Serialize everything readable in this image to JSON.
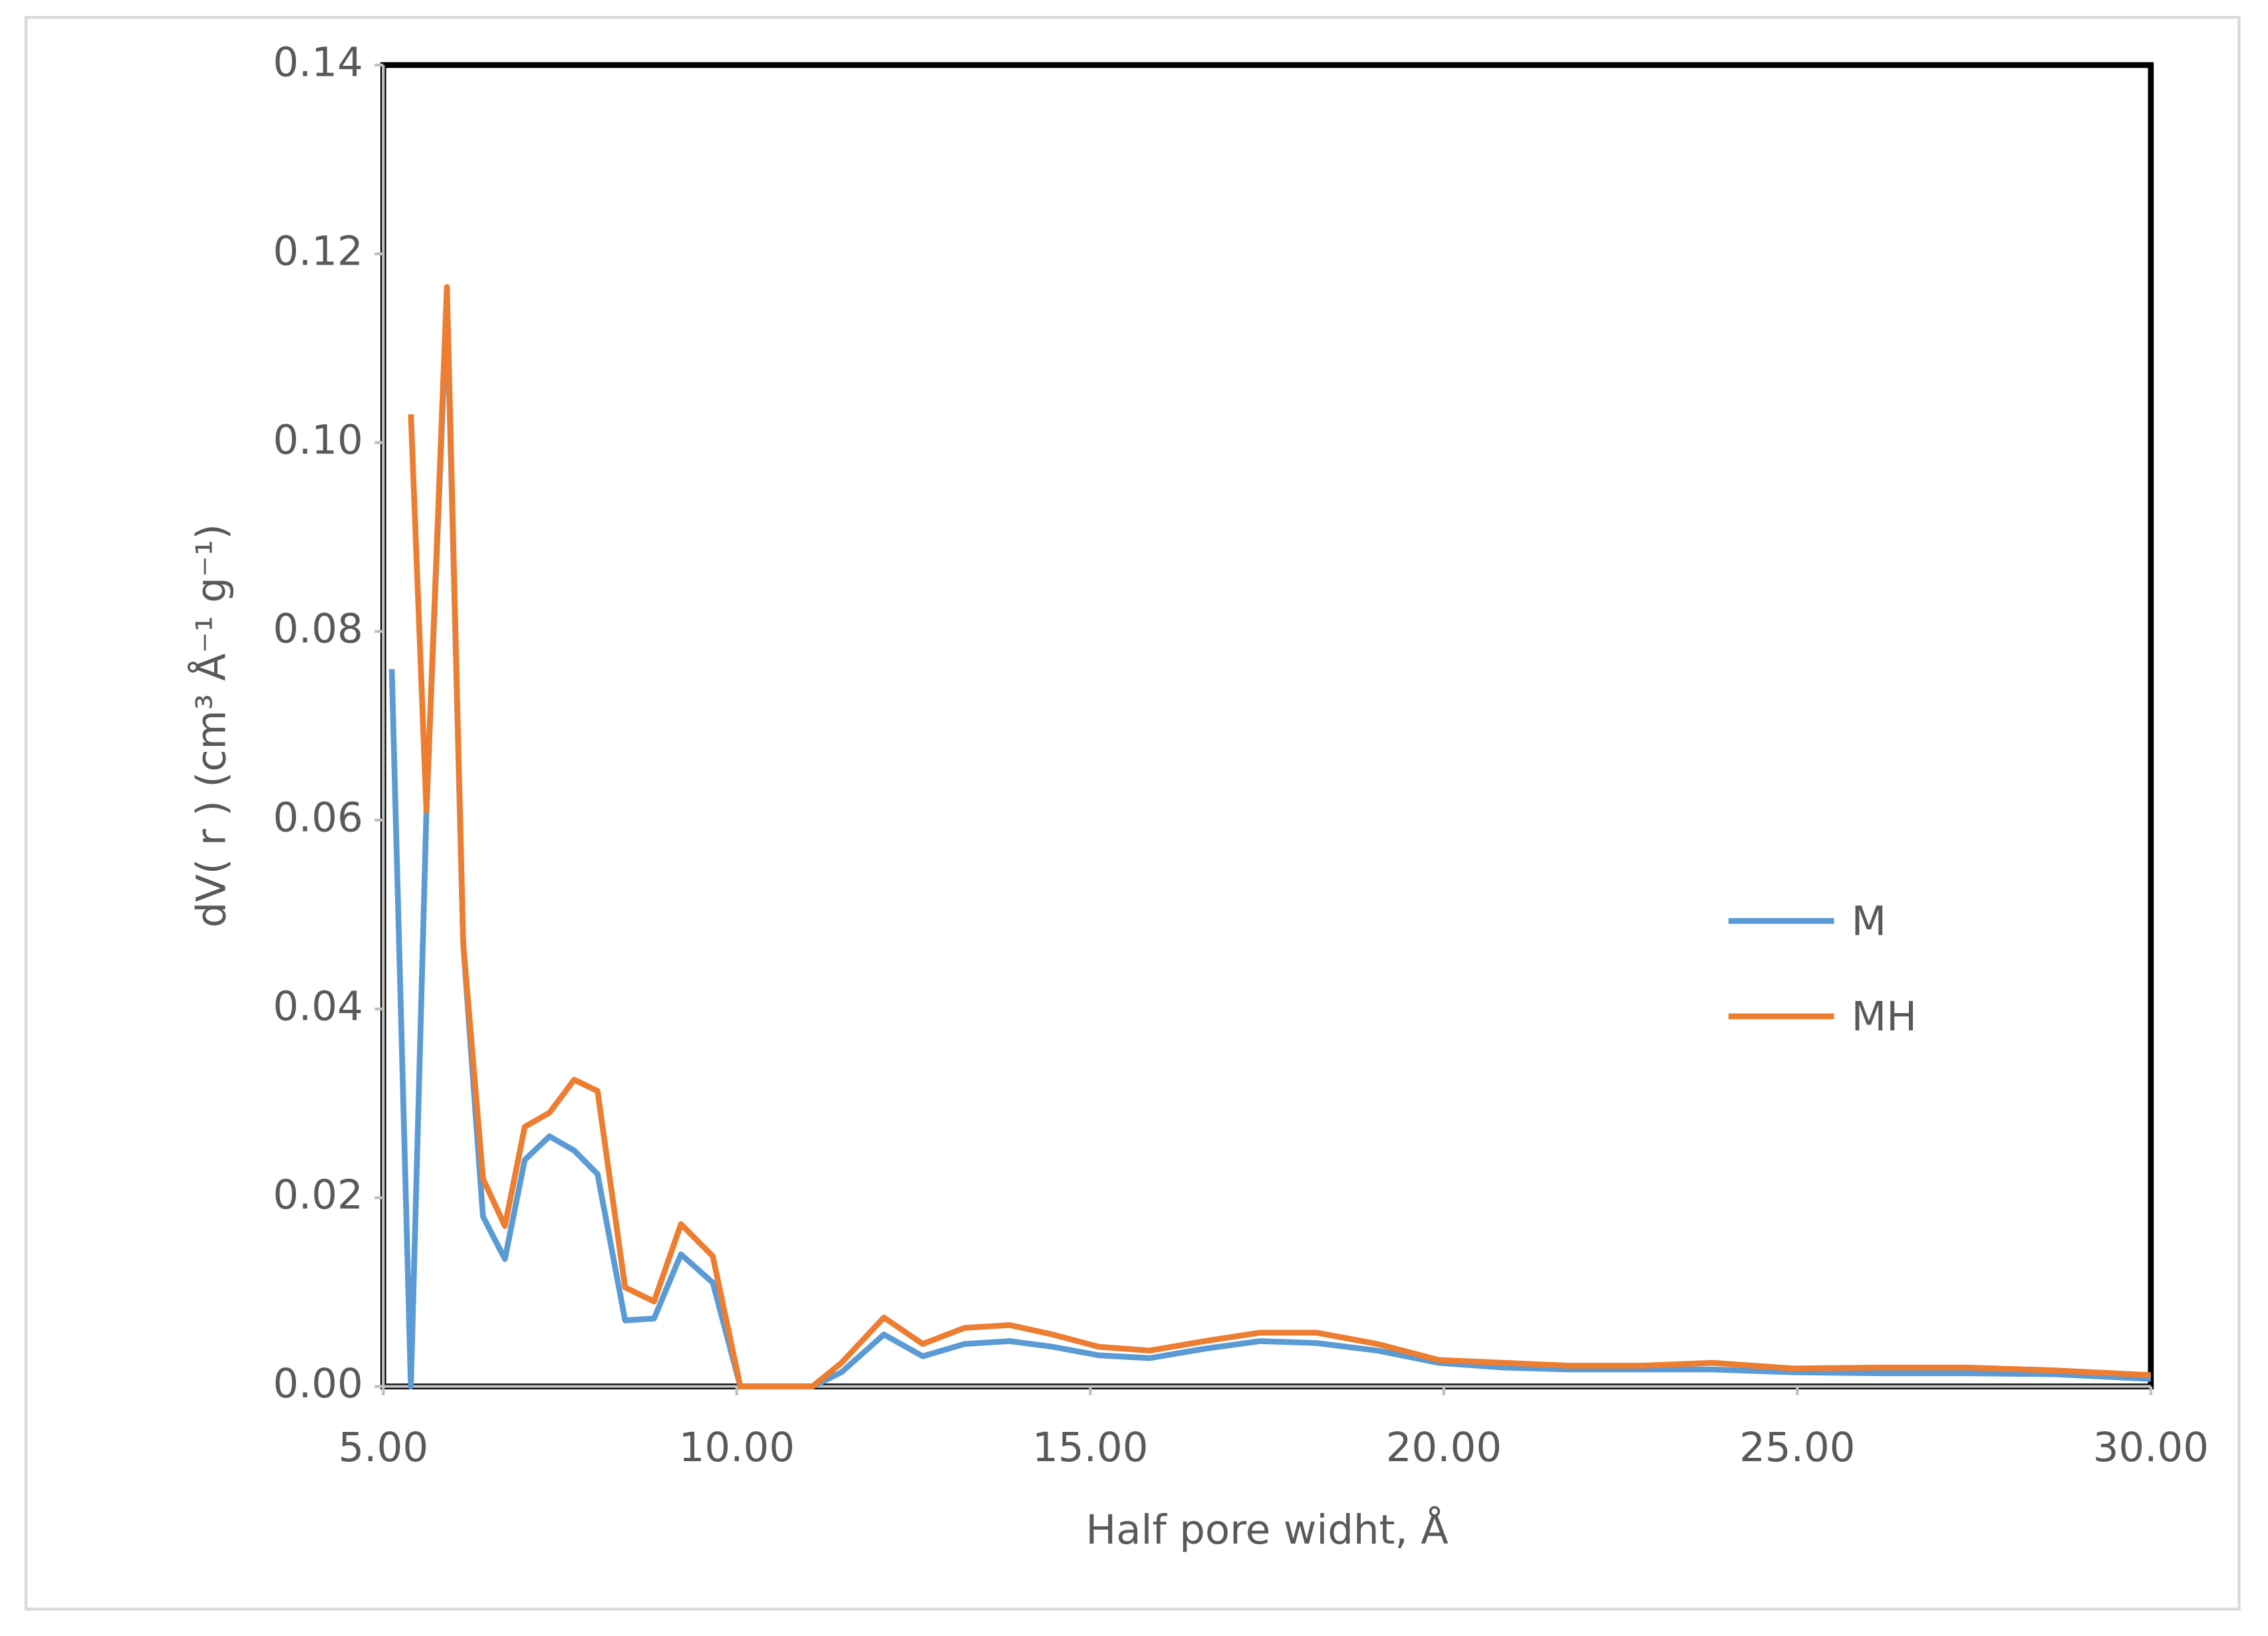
{
  "chart_data": {
    "type": "line",
    "y_label": "dV( r ) (cm³ Å⁻¹ g⁻¹)",
    "x_label": "Half pore widht, Å",
    "x": [
      5.12,
      5.39,
      5.61,
      5.9,
      6.13,
      6.41,
      6.72,
      7.0,
      7.35,
      7.7,
      8.03,
      8.42,
      8.83,
      9.21,
      9.66,
      10.05,
      10.56,
      11.07,
      11.48,
      12.08,
      12.63,
      13.22,
      13.86,
      14.47,
      15.12,
      15.84,
      16.62,
      17.4,
      18.2,
      19.06,
      19.93,
      20.85,
      21.77,
      22.8,
      23.8,
      24.95,
      26.17,
      27.4,
      28.63,
      30.0
    ],
    "series": [
      {
        "name": "M",
        "color": "#5b9bd5",
        "values": [
          0.076,
          0,
          0.061,
          0.115,
          0.047,
          0.018,
          0.0135,
          0.024,
          0.0265,
          0.025,
          0.0225,
          0.007,
          0.0072,
          0.014,
          0.011,
          0,
          0,
          0,
          0.0015,
          0.0055,
          0.0032,
          0.0045,
          0.0048,
          0.0042,
          0.0033,
          0.003,
          0.004,
          0.0048,
          0.0046,
          0.0038,
          0.0025,
          0.002,
          0.0018,
          0.0018,
          0.0018,
          0.0015,
          0.0014,
          0.0014,
          0.0013,
          0.0008
        ]
      },
      {
        "name": "MH",
        "color": "#ed7d31",
        "values": [
          null,
          0.103,
          0.061,
          0.1165,
          0.047,
          0.022,
          0.017,
          0.0275,
          0.029,
          0.0325,
          0.0313,
          0.0105,
          0.009,
          0.0172,
          0.0138,
          0,
          0,
          0,
          0.0025,
          0.0073,
          0.0045,
          0.0062,
          0.0065,
          0.0055,
          0.0042,
          0.0038,
          0.0048,
          0.0057,
          0.0057,
          0.0045,
          0.0028,
          0.0025,
          0.0022,
          0.0022,
          0.0025,
          0.0019,
          0.002,
          0.002,
          0.0017,
          0.0012
        ]
      }
    ],
    "xlim": [
      5,
      30
    ],
    "ylim": [
      0,
      0.14
    ],
    "xticks": [
      {
        "value": 5,
        "label": "5.00"
      },
      {
        "value": 10,
        "label": "10.00"
      },
      {
        "value": 15,
        "label": "15.00"
      },
      {
        "value": 20,
        "label": "20.00"
      },
      {
        "value": 25,
        "label": "25.00"
      },
      {
        "value": 30,
        "label": "30.00"
      }
    ],
    "yticks": [
      {
        "value": 0,
        "label": "0.00"
      },
      {
        "value": 0.02,
        "label": "0.02"
      },
      {
        "value": 0.04,
        "label": "0.04"
      },
      {
        "value": 0.06,
        "label": "0.06"
      },
      {
        "value": 0.08,
        "label": "0.08"
      },
      {
        "value": 0.1,
        "label": "0.10"
      },
      {
        "value": 0.12,
        "label": "0.12"
      },
      {
        "value": 0.14,
        "label": "0.14"
      }
    ],
    "grid": false,
    "legend": "right"
  }
}
